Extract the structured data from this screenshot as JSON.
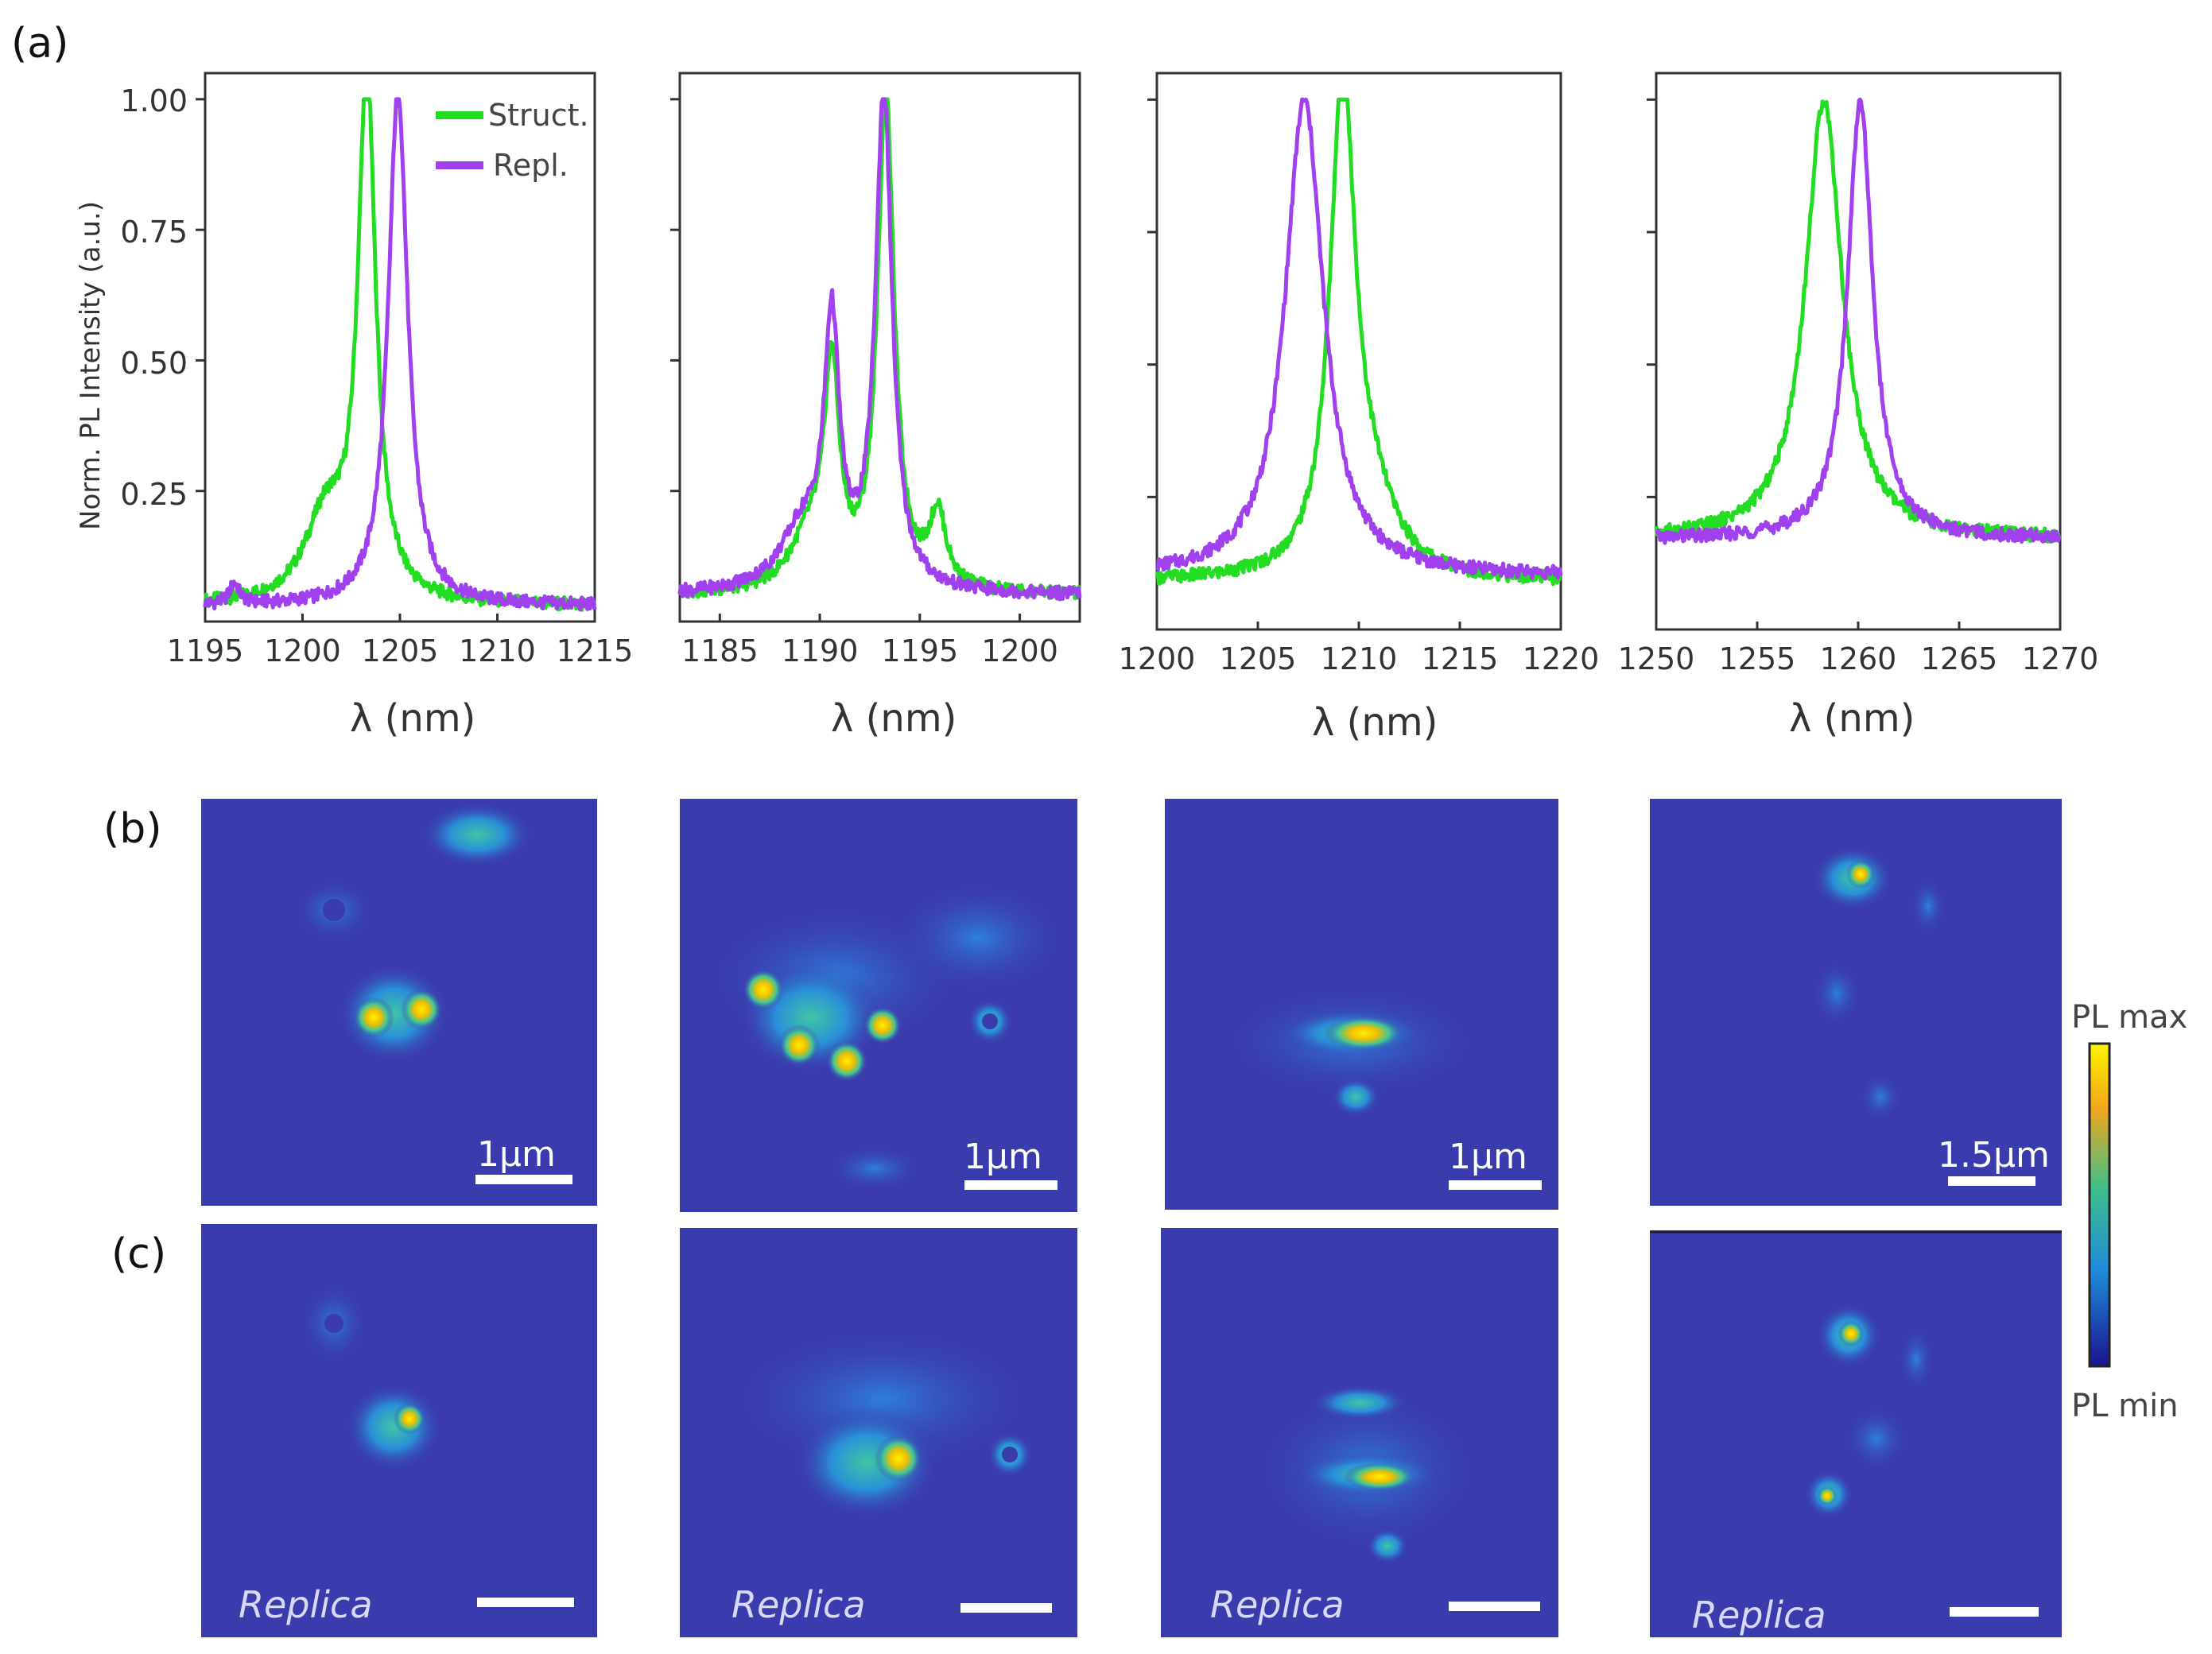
{
  "figure_labels": {
    "a": "(a)",
    "b": "(b)",
    "c": "(c)"
  },
  "colors": {
    "struct": "#22dd22",
    "repl": "#a040ee",
    "map_bg": "#3a3cae"
  },
  "legend": {
    "struct": "Struct.",
    "repl": "Repl."
  },
  "ylabel": "Norm. PL Intensity (a.u.)",
  "xlabel_symbol": "λ",
  "xlabel_unit": "(nm)",
  "ytick_labels": [
    "1.00",
    "0.75",
    "0.50",
    "0.25"
  ],
  "colorbar": {
    "max_label": "PL max",
    "min_label": "PL min"
  },
  "maps": {
    "b_scales": [
      "1μm",
      "1μm",
      "1μm",
      "1.5μm"
    ],
    "c_label": "Replica"
  },
  "chart_data": [
    {
      "type": "line",
      "xlim": [
        1195,
        1215
      ],
      "ylim": [
        0,
        1.05
      ],
      "xticks": [
        1195,
        1200,
        1205,
        1210,
        1215
      ],
      "yticks": [
        0.25,
        0.5,
        0.75,
        1.0
      ],
      "series": [
        {
          "name": "Struct.",
          "peaks": [
            {
              "x": 1203.3,
              "a": 1.0,
              "w": 0.55
            },
            {
              "x": 1201.2,
              "a": 0.16,
              "w": 1.3
            }
          ],
          "baseline": 0.03
        },
        {
          "name": "Repl.",
          "peaks": [
            {
              "x": 1204.9,
              "a": 0.99,
              "w": 0.6
            },
            {
              "x": 1196.5,
              "a": 0.04,
              "w": 0.3
            }
          ],
          "baseline": 0.03
        }
      ]
    },
    {
      "type": "line",
      "xlim": [
        1183,
        1203
      ],
      "ylim": [
        0,
        1.05
      ],
      "xticks": [
        1185,
        1190,
        1195,
        1200
      ],
      "yticks": [
        0.25,
        0.5,
        0.75,
        1.0
      ],
      "series": [
        {
          "name": "Struct.",
          "peaks": [
            {
              "x": 1193.3,
              "a": 0.95,
              "w": 0.5
            },
            {
              "x": 1190.6,
              "a": 0.4,
              "w": 0.45
            },
            {
              "x": 1195.9,
              "a": 0.14,
              "w": 0.5
            },
            {
              "x": 1189.5,
              "a": 0.1,
              "w": 1.2
            }
          ],
          "baseline": 0.05
        },
        {
          "name": "Repl.",
          "peaks": [
            {
              "x": 1193.2,
              "a": 0.95,
              "w": 0.5
            },
            {
              "x": 1190.6,
              "a": 0.48,
              "w": 0.45
            },
            {
              "x": 1189.2,
              "a": 0.12,
              "w": 1.4
            }
          ],
          "baseline": 0.05
        }
      ]
    },
    {
      "type": "line",
      "xlim": [
        1200,
        1220
      ],
      "ylim": [
        0,
        1.05
      ],
      "xticks": [
        1200,
        1205,
        1210,
        1215,
        1220
      ],
      "yticks": [
        0.25,
        0.5,
        0.75,
        1.0
      ],
      "series": [
        {
          "name": "Struct.",
          "peaks": [
            {
              "x": 1209.2,
              "a": 0.92,
              "w": 0.75
            },
            {
              "x": 1210.6,
              "a": 0.12,
              "w": 1.5
            }
          ],
          "baseline": 0.09
        },
        {
          "name": "Repl.",
          "peaks": [
            {
              "x": 1207.3,
              "a": 0.9,
              "w": 1.15
            }
          ],
          "baseline": 0.1
        }
      ]
    },
    {
      "type": "line",
      "xlim": [
        1250,
        1270
      ],
      "ylim": [
        0,
        1.05
      ],
      "xticks": [
        1250,
        1255,
        1260,
        1265,
        1270
      ],
      "yticks": [
        0.25,
        0.5,
        0.75,
        1.0
      ],
      "series": [
        {
          "name": "Struct.",
          "peaks": [
            {
              "x": 1258.3,
              "a": 0.83,
              "w": 1.1
            }
          ],
          "baseline": 0.17
        },
        {
          "name": "Repl.",
          "peaks": [
            {
              "x": 1260.1,
              "a": 0.83,
              "w": 0.75
            }
          ],
          "baseline": 0.17
        }
      ]
    }
  ]
}
